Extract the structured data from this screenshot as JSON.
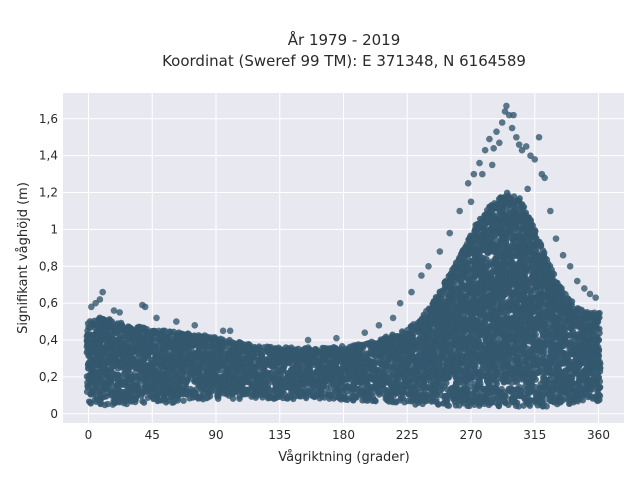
{
  "chart_data": {
    "type": "scatter",
    "title_line1": "År 1979 - 2019",
    "title_line2": "Koordinat (Sweref 99 TM): E 371348, N 6164589",
    "xlabel": "Vågriktning (grader)",
    "ylabel": "Signifikant våghöjd (m)",
    "xlim": [
      -18,
      378
    ],
    "ylim": [
      -0.05,
      1.74
    ],
    "xticks": [
      0,
      45,
      90,
      135,
      180,
      225,
      270,
      315,
      360
    ],
    "xtick_labels": [
      "0",
      "45",
      "90",
      "135",
      "180",
      "225",
      "270",
      "315",
      "360"
    ],
    "yticks": [
      0,
      0.2,
      0.4,
      0.6,
      0.8,
      1.0,
      1.2,
      1.4,
      1.6
    ],
    "ytick_labels": [
      "0",
      "0,2",
      "0,4",
      "0,6",
      "0,8",
      "1",
      "1,2",
      "1,4",
      "1,6"
    ],
    "grid": true,
    "marker_color": "#34586e",
    "plot_bg": "#e8e8f0",
    "envelope": {
      "direction": [
        0,
        10,
        20,
        30,
        45,
        60,
        75,
        90,
        105,
        120,
        135,
        150,
        165,
        180,
        195,
        210,
        225,
        240,
        255,
        265,
        275,
        285,
        295,
        305,
        315,
        325,
        335,
        345,
        355,
        360
      ],
      "upper_dense": [
        0.5,
        0.53,
        0.5,
        0.48,
        0.46,
        0.45,
        0.43,
        0.42,
        0.39,
        0.37,
        0.36,
        0.36,
        0.36,
        0.37,
        0.38,
        0.42,
        0.46,
        0.57,
        0.76,
        0.9,
        1.05,
        1.14,
        1.2,
        1.17,
        1.0,
        0.82,
        0.66,
        0.58,
        0.55,
        0.55
      ],
      "lower": [
        0.05,
        0.04,
        0.05,
        0.05,
        0.06,
        0.06,
        0.07,
        0.08,
        0.08,
        0.08,
        0.08,
        0.08,
        0.08,
        0.07,
        0.07,
        0.06,
        0.05,
        0.05,
        0.04,
        0.04,
        0.04,
        0.04,
        0.04,
        0.04,
        0.04,
        0.04,
        0.05,
        0.05,
        0.05,
        0.06
      ]
    },
    "outliers": [
      {
        "x": 2,
        "y": 0.58
      },
      {
        "x": 8,
        "y": 0.62
      },
      {
        "x": 10,
        "y": 0.66
      },
      {
        "x": 5,
        "y": 0.6
      },
      {
        "x": 18,
        "y": 0.56
      },
      {
        "x": 22,
        "y": 0.55
      },
      {
        "x": 38,
        "y": 0.59
      },
      {
        "x": 40,
        "y": 0.58
      },
      {
        "x": 48,
        "y": 0.52
      },
      {
        "x": 62,
        "y": 0.5
      },
      {
        "x": 75,
        "y": 0.48
      },
      {
        "x": 95,
        "y": 0.45
      },
      {
        "x": 100,
        "y": 0.45
      },
      {
        "x": 155,
        "y": 0.4
      },
      {
        "x": 175,
        "y": 0.41
      },
      {
        "x": 195,
        "y": 0.44
      },
      {
        "x": 205,
        "y": 0.48
      },
      {
        "x": 215,
        "y": 0.52
      },
      {
        "x": 220,
        "y": 0.6
      },
      {
        "x": 228,
        "y": 0.66
      },
      {
        "x": 235,
        "y": 0.75
      },
      {
        "x": 240,
        "y": 0.8
      },
      {
        "x": 248,
        "y": 0.88
      },
      {
        "x": 255,
        "y": 0.98
      },
      {
        "x": 262,
        "y": 1.1
      },
      {
        "x": 268,
        "y": 1.25
      },
      {
        "x": 272,
        "y": 1.3
      },
      {
        "x": 276,
        "y": 1.36
      },
      {
        "x": 280,
        "y": 1.43
      },
      {
        "x": 283,
        "y": 1.49
      },
      {
        "x": 286,
        "y": 1.44
      },
      {
        "x": 288,
        "y": 1.53
      },
      {
        "x": 290,
        "y": 1.47
      },
      {
        "x": 292,
        "y": 1.58
      },
      {
        "x": 294,
        "y": 1.64
      },
      {
        "x": 295,
        "y": 1.67
      },
      {
        "x": 297,
        "y": 1.62
      },
      {
        "x": 299,
        "y": 1.55
      },
      {
        "x": 300,
        "y": 1.62
      },
      {
        "x": 302,
        "y": 1.5
      },
      {
        "x": 304,
        "y": 1.46
      },
      {
        "x": 306,
        "y": 1.43
      },
      {
        "x": 309,
        "y": 1.45
      },
      {
        "x": 312,
        "y": 1.4
      },
      {
        "x": 315,
        "y": 1.38
      },
      {
        "x": 318,
        "y": 1.5
      },
      {
        "x": 320,
        "y": 1.3
      },
      {
        "x": 322,
        "y": 1.28
      },
      {
        "x": 326,
        "y": 1.1
      },
      {
        "x": 330,
        "y": 0.95
      },
      {
        "x": 335,
        "y": 0.86
      },
      {
        "x": 340,
        "y": 0.8
      },
      {
        "x": 345,
        "y": 0.72
      },
      {
        "x": 350,
        "y": 0.68
      },
      {
        "x": 354,
        "y": 0.65
      },
      {
        "x": 358,
        "y": 0.63
      },
      {
        "x": 310,
        "y": 1.22
      },
      {
        "x": 285,
        "y": 1.35
      },
      {
        "x": 278,
        "y": 1.3
      },
      {
        "x": 270,
        "y": 1.15
      }
    ]
  }
}
